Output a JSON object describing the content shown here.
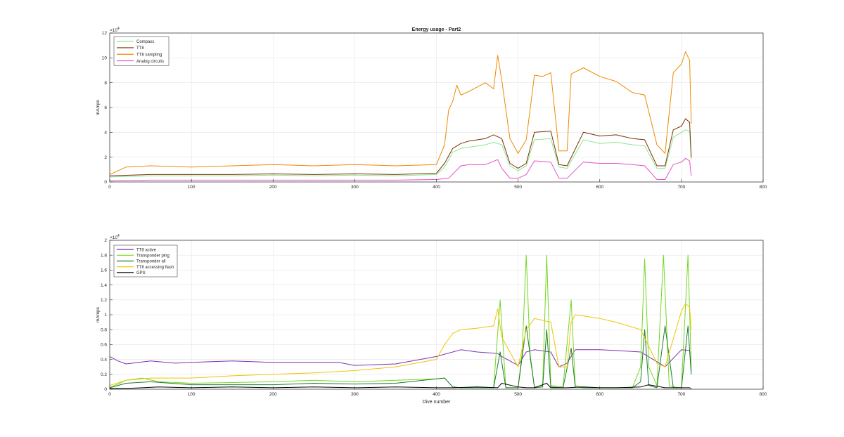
{
  "chart_data": [
    {
      "type": "line",
      "title": "Energy usage - Part2",
      "xlabel": "",
      "ylabel": "mAmps",
      "y_exponent_label": "×10",
      "y_exponent": "4",
      "xlim": [
        0,
        800
      ],
      "ylim": [
        0,
        12
      ],
      "x_ticks": [
        0,
        100,
        200,
        300,
        400,
        500,
        600,
        700,
        800
      ],
      "y_ticks": [
        0,
        2,
        4,
        6,
        8,
        10,
        12
      ],
      "grid": true,
      "legend_position": "top-left",
      "series": [
        {
          "name": "Compass",
          "color": "#8ee68e",
          "x": [
            0,
            50,
            100,
            150,
            200,
            250,
            300,
            350,
            400,
            410,
            420,
            430,
            440,
            460,
            470,
            480,
            490,
            500,
            510,
            520,
            540,
            550,
            560,
            580,
            600,
            620,
            640,
            655,
            670,
            680,
            690,
            700,
            705,
            710,
            712
          ],
          "y": [
            0.4,
            0.5,
            0.5,
            0.5,
            0.55,
            0.5,
            0.55,
            0.5,
            0.6,
            1.2,
            2.4,
            2.7,
            2.8,
            3.0,
            3.2,
            3.0,
            1.3,
            0.9,
            1.3,
            3.4,
            3.5,
            1.2,
            1.1,
            3.4,
            3.1,
            3.2,
            3.0,
            2.9,
            1.1,
            1.1,
            3.6,
            4.0,
            4.2,
            4.1,
            1.8
          ]
        },
        {
          "name": "TT8",
          "color": "#7a2e00",
          "x": [
            0,
            50,
            100,
            150,
            200,
            250,
            300,
            350,
            400,
            410,
            420,
            430,
            440,
            460,
            470,
            480,
            490,
            500,
            510,
            520,
            540,
            550,
            560,
            580,
            600,
            620,
            640,
            655,
            670,
            680,
            690,
            700,
            705,
            710,
            712
          ],
          "y": [
            0.5,
            0.6,
            0.6,
            0.6,
            0.65,
            0.6,
            0.65,
            0.6,
            0.7,
            1.5,
            2.7,
            3.1,
            3.3,
            3.5,
            3.8,
            3.5,
            1.5,
            1.1,
            1.5,
            4.0,
            4.1,
            1.4,
            1.3,
            4.0,
            3.7,
            3.8,
            3.5,
            3.4,
            1.3,
            1.3,
            4.2,
            4.5,
            5.1,
            4.8,
            2.0
          ]
        },
        {
          "name": "TT8 sampling",
          "color": "#ee8a00",
          "x": [
            0,
            20,
            50,
            100,
            150,
            200,
            250,
            300,
            350,
            400,
            410,
            415,
            420,
            425,
            430,
            440,
            460,
            470,
            475,
            480,
            490,
            500,
            510,
            520,
            530,
            540,
            550,
            560,
            565,
            580,
            600,
            620,
            640,
            655,
            670,
            680,
            690,
            700,
            705,
            710,
            712
          ],
          "y": [
            0.6,
            1.2,
            1.3,
            1.2,
            1.3,
            1.4,
            1.3,
            1.4,
            1.3,
            1.4,
            3.0,
            5.8,
            6.5,
            7.8,
            7.0,
            7.3,
            8.0,
            7.5,
            10.2,
            8.2,
            3.5,
            2.3,
            3.4,
            8.6,
            8.5,
            8.8,
            2.5,
            2.5,
            8.7,
            9.2,
            8.5,
            8.1,
            7.2,
            7.0,
            3.0,
            2.3,
            8.8,
            9.5,
            10.5,
            9.8,
            4.7
          ]
        },
        {
          "name": "Analog circuits",
          "color": "#e052c8",
          "x": [
            0,
            50,
            100,
            150,
            200,
            250,
            300,
            350,
            400,
            415,
            430,
            440,
            460,
            475,
            480,
            490,
            500,
            510,
            520,
            540,
            550,
            560,
            580,
            600,
            620,
            640,
            655,
            670,
            680,
            690,
            700,
            705,
            710,
            712
          ],
          "y": [
            0.1,
            0.15,
            0.15,
            0.15,
            0.15,
            0.15,
            0.15,
            0.15,
            0.2,
            0.3,
            1.3,
            1.4,
            1.4,
            1.8,
            1.1,
            0.3,
            0.3,
            0.6,
            1.7,
            1.6,
            0.3,
            0.3,
            1.6,
            1.5,
            1.5,
            1.4,
            1.3,
            0.2,
            0.2,
            1.4,
            1.6,
            1.9,
            1.7,
            0.5
          ]
        }
      ]
    },
    {
      "type": "line",
      "title": "",
      "xlabel": "Dive number",
      "ylabel": "mAmps",
      "y_exponent_label": "×10",
      "y_exponent": "4",
      "xlim": [
        0,
        800
      ],
      "ylim": [
        0,
        2
      ],
      "x_ticks": [
        0,
        100,
        200,
        300,
        400,
        500,
        600,
        700,
        800
      ],
      "y_ticks": [
        0,
        0.2,
        0.4,
        0.6,
        0.8,
        1,
        1.2,
        1.4,
        1.6,
        1.8,
        2
      ],
      "grid": true,
      "legend_position": "top-left",
      "series": [
        {
          "name": "TT8 active",
          "color": "#7e2fb0",
          "x": [
            0,
            10,
            20,
            50,
            80,
            100,
            150,
            200,
            250,
            280,
            300,
            350,
            400,
            420,
            430,
            450,
            475,
            480,
            500,
            510,
            520,
            540,
            550,
            560,
            570,
            600,
            620,
            650,
            670,
            680,
            700,
            710,
            712
          ],
          "y": [
            0.44,
            0.38,
            0.34,
            0.38,
            0.35,
            0.36,
            0.38,
            0.36,
            0.36,
            0.36,
            0.32,
            0.34,
            0.44,
            0.5,
            0.53,
            0.5,
            0.48,
            0.44,
            0.32,
            0.5,
            0.53,
            0.5,
            0.3,
            0.35,
            0.53,
            0.53,
            0.52,
            0.5,
            0.37,
            0.3,
            0.53,
            0.52,
            0.25
          ]
        },
        {
          "name": "Transponder ping",
          "color": "#73d81f",
          "x": [
            0,
            20,
            40,
            60,
            100,
            150,
            200,
            250,
            300,
            350,
            400,
            410,
            420,
            430,
            470,
            478,
            485,
            500,
            505,
            510,
            515,
            520,
            530,
            535,
            540,
            555,
            565,
            570,
            580,
            640,
            650,
            655,
            660,
            670,
            678,
            685,
            690,
            700,
            708,
            712
          ],
          "y": [
            0.02,
            0.12,
            0.15,
            0.1,
            0.08,
            0.09,
            0.1,
            0.12,
            0.1,
            0.12,
            0.14,
            0.15,
            0.03,
            0.02,
            0.02,
            1.2,
            0.02,
            0.02,
            0.5,
            1.8,
            0.4,
            0.03,
            0.05,
            1.8,
            0.05,
            0.03,
            1.2,
            0.05,
            0.02,
            0.02,
            0.3,
            1.75,
            0.3,
            0.05,
            1.8,
            0.05,
            0.03,
            0.02,
            1.8,
            0.3
          ]
        },
        {
          "name": "Transponder all",
          "color": "#1c7a2c",
          "x": [
            0,
            20,
            50,
            100,
            150,
            200,
            250,
            300,
            350,
            400,
            410,
            420,
            430,
            470,
            478,
            485,
            500,
            510,
            520,
            530,
            535,
            540,
            555,
            565,
            570,
            580,
            640,
            650,
            655,
            660,
            670,
            680,
            690,
            700,
            708,
            712
          ],
          "y": [
            0.02,
            0.08,
            0.1,
            0.06,
            0.06,
            0.06,
            0.08,
            0.07,
            0.08,
            0.14,
            0.15,
            0.03,
            0.02,
            0.02,
            0.5,
            0.02,
            0.02,
            0.85,
            0.02,
            0.03,
            0.8,
            0.03,
            0.02,
            0.55,
            0.03,
            0.02,
            0.02,
            0.1,
            0.8,
            0.05,
            0.02,
            0.85,
            0.02,
            0.02,
            0.85,
            0.2
          ]
        },
        {
          "name": "TT8 accessing flash",
          "color": "#f2c400",
          "x": [
            0,
            20,
            50,
            100,
            150,
            200,
            250,
            300,
            350,
            400,
            410,
            420,
            430,
            450,
            470,
            475,
            480,
            500,
            510,
            520,
            540,
            550,
            560,
            565,
            570,
            600,
            620,
            650,
            670,
            680,
            700,
            705,
            710,
            712
          ],
          "y": [
            0.05,
            0.12,
            0.15,
            0.15,
            0.18,
            0.2,
            0.22,
            0.25,
            0.3,
            0.4,
            0.6,
            0.75,
            0.8,
            0.82,
            0.85,
            1.08,
            0.7,
            0.3,
            0.8,
            0.95,
            0.9,
            0.3,
            0.3,
            0.9,
            1.0,
            0.95,
            0.9,
            0.8,
            0.35,
            0.3,
            1.05,
            1.15,
            1.1,
            0.8
          ]
        },
        {
          "name": "GPS",
          "color": "#000000",
          "x": [
            0,
            20,
            40,
            60,
            100,
            150,
            200,
            250,
            300,
            350,
            400,
            420,
            450,
            475,
            480,
            500,
            510,
            520,
            535,
            540,
            560,
            580,
            600,
            620,
            650,
            660,
            680,
            700,
            710,
            712
          ],
          "y": [
            0.01,
            0.01,
            0.02,
            0.03,
            0.02,
            0.03,
            0.02,
            0.03,
            0.02,
            0.03,
            0.02,
            0.02,
            0.03,
            0.02,
            0.08,
            0.03,
            0.02,
            0.02,
            0.08,
            0.02,
            0.02,
            0.03,
            0.02,
            0.02,
            0.03,
            0.06,
            0.02,
            0.02,
            0.02,
            0.01
          ]
        }
      ]
    }
  ]
}
